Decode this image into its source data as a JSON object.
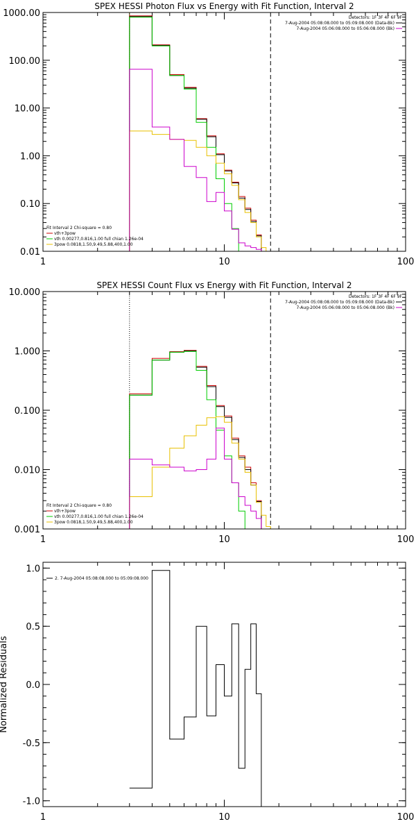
{
  "chart_data": [
    {
      "type": "line",
      "step": true,
      "title": "SPEX HESSI Photon Flux vs Energy with Fit Function, Interval 2",
      "xscale": "log",
      "yscale": "log",
      "xlim": [
        1,
        100
      ],
      "ylim": [
        0.01,
        1000
      ],
      "xticks": [
        1,
        10,
        100
      ],
      "xtick_labels": [
        "1",
        "10",
        "100"
      ],
      "yticks": [
        0.01,
        0.1,
        1,
        10,
        100,
        1000
      ],
      "ytick_labels": [
        "0.01",
        "0.10",
        "1.00",
        "10.00",
        "100.00",
        "1000.00"
      ],
      "bin_edges": [
        3,
        4,
        5,
        6,
        7,
        8,
        9,
        10,
        11,
        12,
        13,
        14,
        15,
        16,
        17,
        18,
        19,
        21
      ],
      "vlines": [
        {
          "x": 3,
          "style": "dotted",
          "color": "#d4a000"
        },
        {
          "x": 18,
          "style": "dashed",
          "color": "#000000"
        }
      ],
      "series": [
        {
          "name": "vth+3pow",
          "color": "#cc0000",
          "values": [
            850,
            210,
            50,
            27,
            6,
            2.6,
            1.1,
            0.5,
            0.28,
            0.14,
            0.08,
            0.045,
            0.022,
            null,
            null,
            null,
            null
          ]
        },
        {
          "name": "data",
          "color": "#000000",
          "values": [
            820,
            205,
            48,
            26,
            5.8,
            2.5,
            1.05,
            0.48,
            0.27,
            0.13,
            0.075,
            0.042,
            0.021,
            null,
            null,
            null,
            null
          ]
        },
        {
          "name": "vth 0.00277,0.816,1.00 full chian 1.26e-04",
          "color": "#00cc00",
          "values": [
            800,
            200,
            48,
            25,
            5,
            1.5,
            0.33,
            0.1,
            0.03,
            0.01,
            null,
            null,
            null,
            null,
            null,
            null,
            null
          ]
        },
        {
          "name": "3pow 0.0818,1.50,9.49,5.88,400,1.00",
          "color": "#e8c000",
          "values": [
            3.3,
            2.8,
            2.2,
            2.1,
            1.5,
            1.0,
            0.7,
            0.42,
            0.24,
            0.12,
            0.065,
            0.04,
            0.02,
            0.012,
            null,
            null,
            null
          ]
        },
        {
          "name": "Bk",
          "color": "#cc00cc",
          "values": [
            65,
            4,
            2.2,
            0.6,
            0.35,
            0.11,
            0.17,
            0.07,
            0.029,
            0.015,
            0.013,
            0.012,
            0.011,
            null,
            null,
            null,
            null
          ]
        }
      ],
      "legend": {
        "position": "bottom-left",
        "header": "Fit Interval 2   Chi-square = 0.80",
        "entries": [
          {
            "label": "vth+3pow",
            "color": "#cc0000"
          },
          {
            "label": "vth 0.00277,0.816,1.00  full chian 1.26e-04",
            "color": "#00cc00"
          },
          {
            "label": "3pow 0.0818,1.50,9.49,5.88,400,1.00",
            "color": "#e8c000"
          }
        ]
      },
      "info": {
        "position": "top-right",
        "detectors": "Detectors: 1F 3F 4F 6F 9F",
        "lines": [
          {
            "label": "7-Aug-2004 05:08:08.000 to 05:09:08.000 (Data-Bk)",
            "color": "#000000"
          },
          {
            "label": "7-Aug-2004 05:06:08.000 to 05:06:08.000 (Bk)",
            "color": "#cc00cc"
          }
        ]
      }
    },
    {
      "type": "line",
      "step": true,
      "title": "SPEX HESSI Count Flux vs Energy with Fit Function, Interval 2",
      "xscale": "log",
      "yscale": "log",
      "xlim": [
        1,
        100
      ],
      "ylim": [
        0.001,
        10
      ],
      "xticks": [
        1,
        10,
        100
      ],
      "xtick_labels": [
        "1",
        "10",
        "100"
      ],
      "yticks": [
        0.001,
        0.01,
        0.1,
        1,
        10
      ],
      "ytick_labels": [
        "0.001",
        "0.010",
        "0.100",
        "1.000",
        "10.000"
      ],
      "bin_edges": [
        3,
        4,
        5,
        6,
        7,
        8,
        9,
        10,
        11,
        12,
        13,
        14,
        15,
        16,
        17,
        18,
        19,
        21
      ],
      "vlines": [
        {
          "x": 3,
          "style": "dotted",
          "color": "#000000"
        },
        {
          "x": 18,
          "style": "dashed",
          "color": "#000000"
        }
      ],
      "series": [
        {
          "name": "vth+3pow",
          "color": "#cc0000",
          "values": [
            0.19,
            0.75,
            0.97,
            1.02,
            0.55,
            0.26,
            0.12,
            0.08,
            0.034,
            0.017,
            0.011,
            0.006,
            0.003,
            null,
            null,
            null,
            null
          ]
        },
        {
          "name": "data",
          "color": "#000000",
          "values": [
            0.18,
            0.7,
            0.95,
            1.0,
            0.53,
            0.25,
            0.115,
            0.076,
            0.032,
            0.016,
            0.01,
            0.0055,
            0.0029,
            null,
            null,
            null,
            null
          ]
        },
        {
          "name": "vth",
          "color": "#00cc00",
          "values": [
            0.18,
            0.7,
            0.95,
            0.98,
            0.47,
            0.15,
            0.046,
            0.017,
            0.006,
            0.002,
            null,
            null,
            null,
            null,
            null,
            null,
            null
          ]
        },
        {
          "name": "3pow",
          "color": "#e8c000",
          "values": [
            0.0035,
            0.011,
            0.023,
            0.037,
            0.056,
            0.075,
            0.078,
            0.063,
            0.028,
            0.015,
            0.009,
            0.0055,
            0.0028,
            0.0017,
            0.0011,
            null,
            null
          ]
        },
        {
          "name": "Bk",
          "color": "#cc00cc",
          "values": [
            0.015,
            0.012,
            0.011,
            0.0095,
            0.01,
            0.015,
            0.05,
            0.015,
            0.006,
            0.0035,
            0.0025,
            0.002,
            0.0015,
            null,
            null,
            null,
            null
          ]
        }
      ],
      "legend": {
        "position": "bottom-left",
        "header": "Fit Interval 2   Chi-square = 0.80",
        "entries": [
          {
            "label": "vth+3pow",
            "color": "#cc0000"
          },
          {
            "label": "vth 0.00277,0.816,1.00  full chian 1.26e-04",
            "color": "#00cc00"
          },
          {
            "label": "3pow 0.0818,1.50,9.49,5.88,400,1.00",
            "color": "#e8c000"
          }
        ]
      },
      "info": {
        "position": "top-right",
        "detectors": "Detectors: 1F 3F 4F 6F 9F",
        "lines": [
          {
            "label": "7-Aug-2004 05:08:08.000 to 05:09:08.000 (Data-Bk)",
            "color": "#000000"
          },
          {
            "label": "7-Aug-2004 05:06:08.000 to 05:06:08.000 (Bk)",
            "color": "#cc00cc"
          }
        ]
      }
    },
    {
      "type": "line",
      "step": true,
      "title": "",
      "xscale": "log",
      "yscale": "linear",
      "xlim": [
        1,
        100
      ],
      "ylim": [
        -1.05,
        1.05
      ],
      "xticks": [
        1,
        10,
        100
      ],
      "xtick_labels": [
        "1",
        "10",
        "100"
      ],
      "yticks": [
        -1.0,
        -0.5,
        0.0,
        0.5,
        1.0
      ],
      "ytick_labels": [
        "-1.0",
        "-0.5",
        "0.0",
        "0.5",
        "1.0"
      ],
      "ylabel": "Normalized Residuals",
      "bin_edges": [
        3,
        4,
        5,
        6,
        7,
        8,
        9,
        10,
        11,
        12,
        13,
        14,
        15,
        16,
        17,
        18
      ],
      "series": [
        {
          "name": "2.  7-Aug-2004 05:08:08.000 to 05:09:08.000",
          "color": "#000000",
          "values": [
            -0.89,
            0.98,
            -0.47,
            -0.28,
            0.5,
            -0.27,
            0.17,
            -0.1,
            0.52,
            -0.72,
            0.13,
            0.52,
            -0.08,
            -1.05,
            -1.05
          ]
        }
      ],
      "legend": {
        "position": "top-left",
        "entries": [
          {
            "label": "2.  7-Aug-2004 05:08:08.000 to 05:09:08.000",
            "color": "#000000"
          }
        ]
      }
    }
  ]
}
